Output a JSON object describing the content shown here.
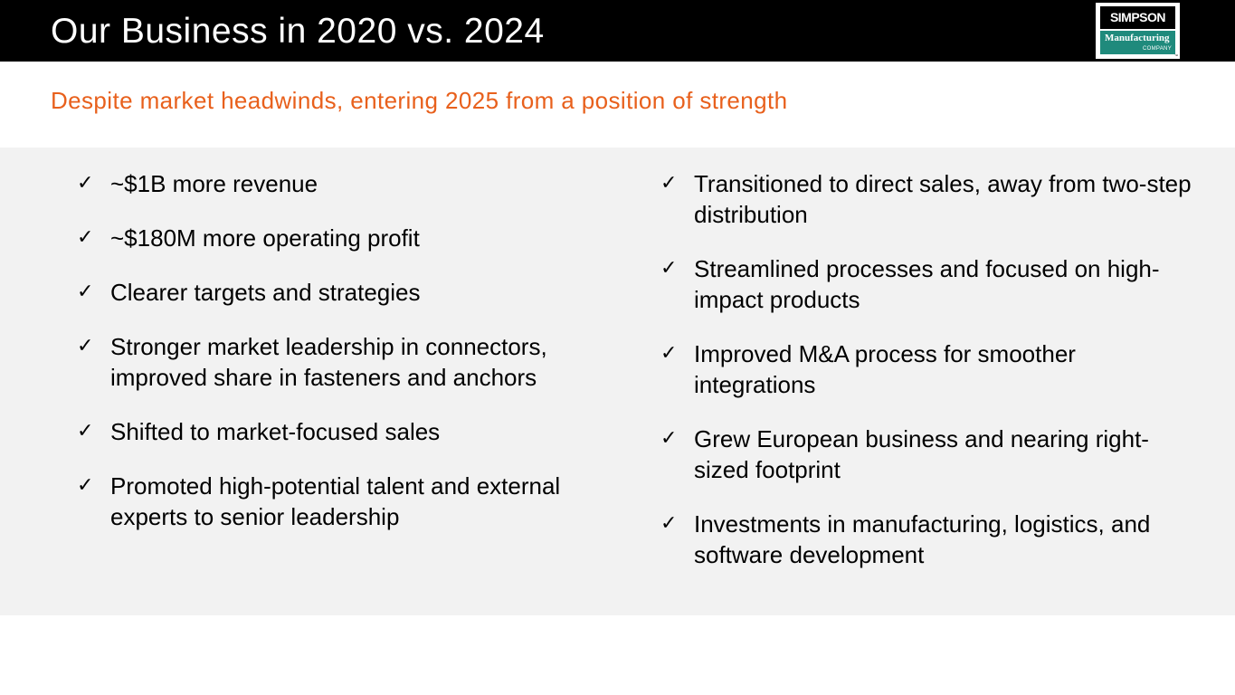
{
  "header": {
    "title": "Our Business in 2020 vs. 2024",
    "logo": {
      "line1": "SIMPSON",
      "line2": "Manufacturing",
      "line3": "COMPANY",
      "tm": "™",
      "icon": "simpson-logo"
    }
  },
  "subtitle": "Despite market headwinds, entering 2025 from a position of strength",
  "check_glyph": "✓",
  "left_items": [
    {
      "text": "~$1B more revenue"
    },
    {
      "text": "~$180M more operating profit"
    },
    {
      "text": "Clearer targets and strategies"
    },
    {
      "text": "Stronger market leadership in connectors, improved share in fasteners and anchors"
    },
    {
      "text": "Shifted to market-focused sales"
    },
    {
      "text": "Promoted high-potential talent and external experts to senior leadership"
    }
  ],
  "right_items": [
    {
      "text": "Transitioned to direct sales, away from two-step distribution"
    },
    {
      "text": "Streamlined processes and focused on high-impact products"
    },
    {
      "text": "Improved M&A process for smoother integrations"
    },
    {
      "text": "Grew European business and nearing right-sized footprint"
    },
    {
      "text": "Investments in manufacturing, logistics, and software development"
    }
  ],
  "colors": {
    "header_bg": "#000000",
    "accent_orange": "#e8601c",
    "panel_bg": "#f2f2f2",
    "logo_teal": "#1f8a7c"
  }
}
